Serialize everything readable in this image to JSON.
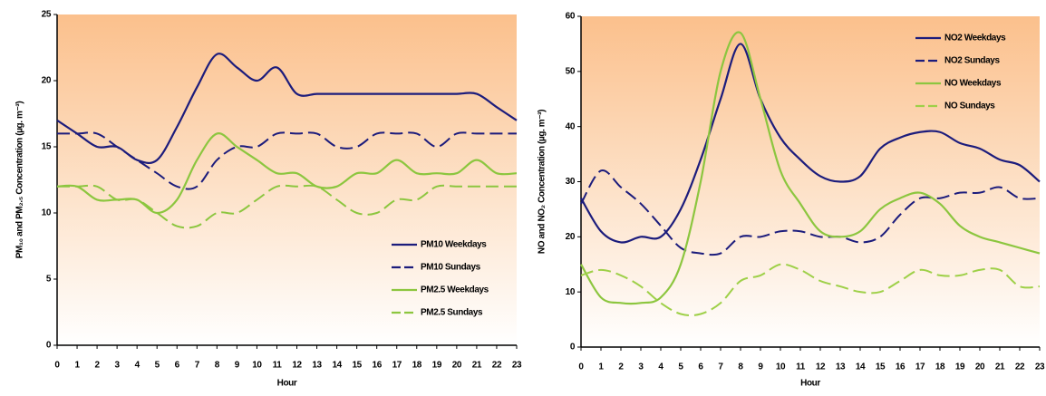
{
  "chart_data": [
    {
      "type": "line",
      "x_label": "Hour",
      "y_label": "PM₁₀ and PM₂.₅ Concentration (µg. m⁻³)",
      "x": [
        0,
        1,
        2,
        3,
        4,
        5,
        6,
        7,
        8,
        9,
        10,
        11,
        12,
        13,
        14,
        15,
        16,
        17,
        18,
        19,
        20,
        21,
        22,
        23
      ],
      "xlim": [
        0,
        23
      ],
      "xticks": [
        0,
        1,
        2,
        3,
        4,
        5,
        6,
        7,
        8,
        9,
        10,
        11,
        12,
        13,
        14,
        15,
        16,
        17,
        18,
        19,
        20,
        21,
        22,
        23
      ],
      "ylim": [
        0,
        25
      ],
      "yticks": [
        0,
        5,
        10,
        15,
        20,
        25
      ],
      "legend": "lower right",
      "series": [
        {
          "name": "PM10 Weekdays",
          "color": "#1c1c7c",
          "dash": false,
          "values": [
            17,
            16,
            15,
            15,
            14,
            14,
            16.5,
            19.5,
            22,
            21,
            20,
            21,
            19,
            19,
            19,
            19,
            19,
            19,
            19,
            19,
            19,
            19,
            18,
            17
          ]
        },
        {
          "name": "PM10 Sundays",
          "color": "#1c1c7c",
          "dash": true,
          "values": [
            16,
            16,
            16,
            15,
            14,
            13,
            12,
            12,
            14,
            15,
            15,
            16,
            16,
            16,
            15,
            15,
            16,
            16,
            16,
            15,
            16,
            16,
            16,
            16
          ]
        },
        {
          "name": "PM2.5 Weekdays",
          "color": "#8cc63f",
          "dash": false,
          "values": [
            12,
            12,
            11,
            11,
            11,
            10,
            11,
            14,
            16,
            15,
            14,
            13,
            13,
            12,
            12,
            13,
            13,
            14,
            13,
            13,
            13,
            14,
            13,
            13
          ]
        },
        {
          "name": "PM2.5 Sundays",
          "color": "#8cc63f",
          "dash": true,
          "values": [
            12,
            12,
            12,
            11,
            11,
            10,
            9,
            9,
            10,
            10,
            11,
            12,
            12,
            12,
            11,
            10,
            10,
            11,
            11,
            12,
            12,
            12,
            12,
            12
          ]
        }
      ]
    },
    {
      "type": "line",
      "x_label": "Hour",
      "y_label": "NO and NO₂ Concentration (µg. m⁻³)",
      "x": [
        0,
        1,
        2,
        3,
        4,
        5,
        6,
        7,
        8,
        9,
        10,
        11,
        12,
        13,
        14,
        15,
        16,
        17,
        18,
        19,
        20,
        21,
        22,
        23
      ],
      "xlim": [
        0,
        23
      ],
      "xticks": [
        0,
        1,
        2,
        3,
        4,
        5,
        6,
        7,
        8,
        9,
        10,
        11,
        12,
        13,
        14,
        15,
        16,
        17,
        18,
        19,
        20,
        21,
        22,
        23
      ],
      "ylim": [
        0,
        60
      ],
      "yticks": [
        0,
        10,
        20,
        30,
        40,
        50,
        60
      ],
      "legend": "upper right",
      "series": [
        {
          "name": "NO2 Weekdays",
          "color": "#1c1c7c",
          "dash": false,
          "values": [
            27,
            21,
            19,
            20,
            20,
            25,
            34,
            45,
            55,
            45,
            38,
            34,
            31,
            30,
            31,
            36,
            38,
            39,
            39,
            37,
            36,
            34,
            33,
            30
          ]
        },
        {
          "name": "NO2 Sundays",
          "color": "#1c1c7c",
          "dash": true,
          "values": [
            26,
            32,
            29,
            26,
            22,
            18,
            17,
            17,
            20,
            20,
            21,
            21,
            20,
            20,
            19,
            20,
            24,
            27,
            27,
            28,
            28,
            29,
            27,
            27
          ]
        },
        {
          "name": "NO Weekdays",
          "color": "#8cc63f",
          "dash": false,
          "values": [
            15,
            9,
            8,
            8,
            9,
            15,
            30,
            50,
            57,
            45,
            32,
            26,
            21,
            20,
            21,
            25,
            27,
            28,
            26,
            22,
            20,
            19,
            18,
            17
          ]
        },
        {
          "name": "NO Sundays",
          "color": "#9ed048",
          "dash": true,
          "values": [
            13,
            14,
            13,
            11,
            8,
            6,
            6,
            8,
            12,
            13,
            15,
            14,
            12,
            11,
            10,
            10,
            12,
            14,
            13,
            13,
            14,
            14,
            11,
            11
          ]
        }
      ]
    }
  ]
}
